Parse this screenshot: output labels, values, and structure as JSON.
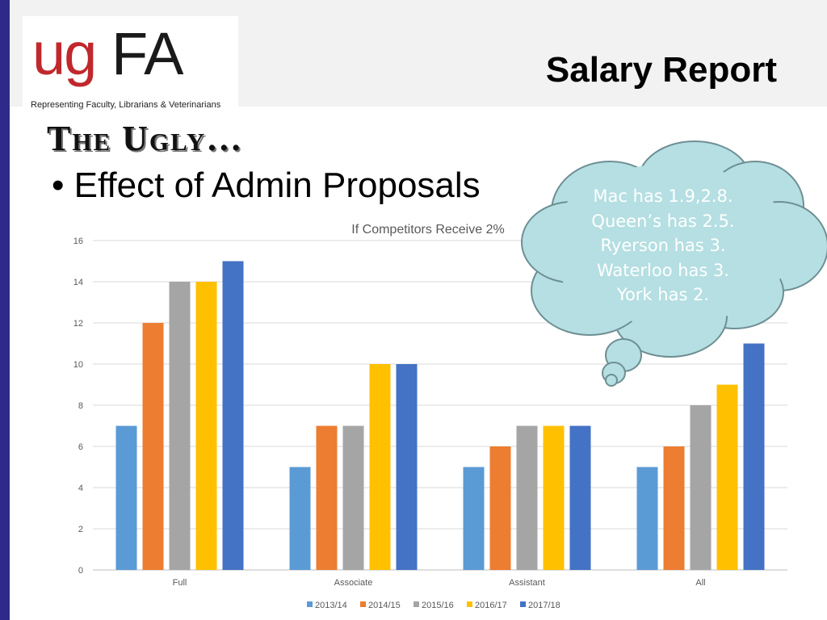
{
  "slide": {
    "logo_ug": "ug",
    "logo_fa": "FA",
    "logo_tagline": "Representing Faculty, Librarians & Veterinarians",
    "title": "Salary Report",
    "section_heading": "The Ugly…",
    "bullet": "Effect of Admin Proposals",
    "bullet_marker": "•",
    "callout_lines": [
      "Mac has 1.9,2.8.",
      "Queen’s has 2.5.",
      "Ryerson has 3.",
      "Waterloo has 3.",
      "York has 2."
    ]
  },
  "colors": {
    "accent_bar": "#2e2a8a",
    "logo_red": "#c0282d",
    "cloud_fill": "#b5dfe2",
    "cloud_stroke": "#6e8f94"
  },
  "chart_data": {
    "type": "bar",
    "title": "If Competitors Receive 2%",
    "categories": [
      "Full",
      "Associate",
      "Assistant",
      "All"
    ],
    "series": [
      {
        "name": "2013/14",
        "color": "#5b9bd5",
        "values": [
          7,
          5,
          5,
          5
        ]
      },
      {
        "name": "2014/15",
        "color": "#ed7d31",
        "values": [
          12,
          7,
          6,
          6
        ]
      },
      {
        "name": "2015/16",
        "color": "#a5a5a5",
        "values": [
          14,
          7,
          7,
          8
        ]
      },
      {
        "name": "2016/17",
        "color": "#ffc000",
        "values": [
          14,
          10,
          7,
          9
        ]
      },
      {
        "name": "2017/18",
        "color": "#4472c4",
        "values": [
          15,
          10,
          7,
          11
        ]
      }
    ],
    "ylim": [
      0,
      16
    ],
    "yticks": [
      0,
      2,
      4,
      6,
      8,
      10,
      12,
      14,
      16
    ],
    "grid": true,
    "legend": "bottom"
  }
}
